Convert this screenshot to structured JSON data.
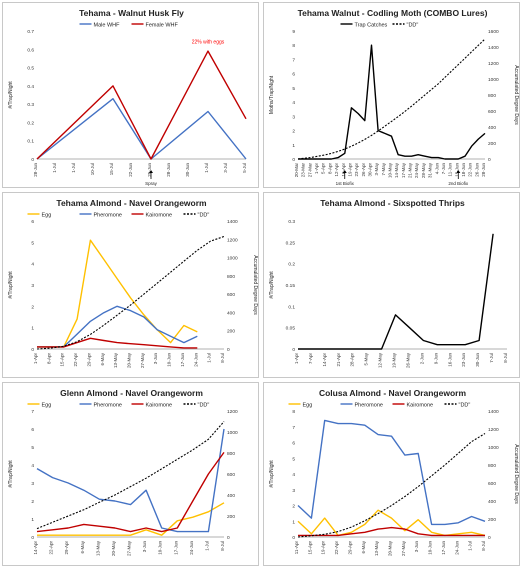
{
  "chart_data": [
    {
      "type": "line",
      "title": "Tehama - Walnut Husk Fly",
      "ylabel": "#/Trap/Night",
      "y2label": "",
      "ylim": [
        0,
        0.7
      ],
      "yticks": [
        0,
        0.1,
        0.2,
        0.3,
        0.4,
        0.5,
        0.6,
        0.7
      ],
      "categories": [
        "28-Jun",
        "1-Jul",
        "1-Jul",
        "10-Jul",
        "15-Jul",
        "22-Jun",
        "25-Jun",
        "28-Jun",
        "30-Jun",
        "1-Jul",
        "3-Jul",
        "5-Jul"
      ],
      "series": [
        {
          "name": "Male WHF",
          "color": "#4472c4",
          "values": [
            0,
            null,
            null,
            null,
            0.33,
            null,
            0,
            null,
            null,
            0.26,
            null,
            0
          ]
        },
        {
          "name": "Female WHF",
          "color": "#c00000",
          "values": [
            0,
            null,
            null,
            null,
            0.4,
            null,
            0,
            null,
            null,
            0.59,
            null,
            0.22
          ]
        }
      ],
      "annotations": [
        {
          "text": "22% with eggs",
          "color": "#ff0000",
          "category_index": 9,
          "y": 0.62
        },
        {
          "text": "Spray",
          "category_index": 6,
          "y": 0
        }
      ],
      "legend": "top"
    },
    {
      "type": "line",
      "title": "Tehama Walnut - Codling Moth (COMBO Lures)",
      "ylabel": "Moths/Trap/Night",
      "y2label": "Accumulated Degree Days",
      "ylim": [
        0,
        9
      ],
      "yticks": [
        0,
        1,
        2,
        3,
        4,
        5,
        6,
        7,
        8,
        9
      ],
      "y2lim": [
        0,
        1600
      ],
      "y2ticks": [
        0,
        200,
        400,
        600,
        800,
        1000,
        1200,
        1400,
        1600
      ],
      "categories": [
        "20-Mar",
        "23-Mar",
        "27-Mar",
        "1-Apr",
        "5-Apr",
        "8-Apr",
        "12-Apr",
        "16-Apr",
        "19-Apr",
        "23-Apr",
        "26-Apr",
        "30-Apr",
        "3-May",
        "7-May",
        "10-May",
        "14-May",
        "17-May",
        "21-May",
        "24-May",
        "28-May",
        "31-May",
        "4-Jun",
        "7-Jun",
        "11-Jun",
        "15-Jun",
        "18-Jun",
        "22-Jun",
        "26-Jun",
        "28-Jun"
      ],
      "series": [
        {
          "name": "Trap Catches",
          "color": "#000000",
          "axis": "left",
          "values": [
            0,
            0,
            0,
            0,
            0,
            0,
            0.1,
            0.4,
            3.6,
            3.2,
            2.7,
            8,
            2,
            1.8,
            1.6,
            0.3,
            0.2,
            0.2,
            0.3,
            0.2,
            0.1,
            0.1,
            0,
            0,
            0,
            0.2,
            0.9,
            1.4,
            1.8
          ]
        },
        {
          "name": "\"DD\"",
          "color": "#000000",
          "dashed": true,
          "axis": "right",
          "values": [
            0,
            10,
            20,
            35,
            50,
            70,
            95,
            125,
            160,
            200,
            245,
            295,
            350,
            410,
            470,
            530,
            595,
            660,
            730,
            800,
            870,
            940,
            1020,
            1100,
            1180,
            1260,
            1340,
            1420,
            1500
          ]
        }
      ],
      "annotations": [
        {
          "text": "1st Biofix",
          "category_index": 7,
          "y": 0
        },
        {
          "text": "2nd Biofix",
          "category_index": 24,
          "y": 0
        }
      ],
      "legend": "top"
    },
    {
      "type": "line",
      "title": "Tehama Almond - Navel Orangeworm",
      "ylabel": "#/Trap/Night",
      "y2label": "Accumulated Degree Days",
      "ylim": [
        0,
        6
      ],
      "yticks": [
        0,
        1,
        2,
        3,
        4,
        5,
        6
      ],
      "y2lim": [
        0,
        1400
      ],
      "y2ticks": [
        0,
        200,
        400,
        600,
        800,
        1000,
        1200,
        1400
      ],
      "categories": [
        "1-Apr",
        "8-Apr",
        "15-Apr",
        "22-Apr",
        "29-Apr",
        "6-May",
        "13-May",
        "20-May",
        "27-May",
        "3-Jun",
        "10-Jun",
        "17-Jun",
        "24-Jun",
        "1-Jul",
        "8-Jul"
      ],
      "series": [
        {
          "name": "Egg",
          "color": "#ffc000",
          "axis": "left",
          "values": [
            0.1,
            0.1,
            0.1,
            1.4,
            5.1,
            4.2,
            3.3,
            2.4,
            1.6,
            0.9,
            0.3,
            1.1,
            0.8,
            null,
            null
          ]
        },
        {
          "name": "Pheromone",
          "color": "#4472c4",
          "axis": "left",
          "values": [
            0.1,
            0.1,
            0.1,
            0.7,
            1.3,
            1.7,
            2.0,
            1.8,
            1.5,
            0.9,
            0.6,
            0.3,
            0.6,
            null,
            null
          ]
        },
        {
          "name": "Kairomone",
          "color": "#c00000",
          "axis": "left",
          "values": [
            0.1,
            0.1,
            0.1,
            0.3,
            0.5,
            0.4,
            0.3,
            0.25,
            0.2,
            0.15,
            0.1,
            0.05,
            0.05,
            null,
            null
          ]
        },
        {
          "name": "\"DD\"",
          "color": "#000000",
          "dashed": true,
          "axis": "right",
          "values": [
            0,
            10,
            30,
            80,
            160,
            260,
            370,
            480,
            600,
            720,
            840,
            960,
            1080,
            1180,
            1230
          ]
        }
      ],
      "legend": "top"
    },
    {
      "type": "line",
      "title": "Tehama Almond - Sixspotted Thrips",
      "ylabel": "#/Trap/Night",
      "y2label": "",
      "ylim": [
        0,
        0.3
      ],
      "yticks": [
        0,
        0.05,
        0.1,
        0.15,
        0.2,
        0.25,
        0.3
      ],
      "categories": [
        "1-Apr",
        "7-Apr",
        "14-Apr",
        "21-Apr",
        "28-Apr",
        "5-May",
        "12-May",
        "19-May",
        "26-May",
        "2-Jun",
        "9-Jun",
        "16-Jun",
        "23-Jun",
        "30-Jun",
        "7-Jul",
        "8-Jul"
      ],
      "series": [
        {
          "name": "Thrips",
          "color": "#000000",
          "values": [
            0,
            0,
            0,
            0,
            0,
            0,
            0,
            0.08,
            0.05,
            0.02,
            0.01,
            0.01,
            0.01,
            0.02,
            0.27,
            null
          ]
        }
      ],
      "legend": "none"
    },
    {
      "type": "line",
      "title": "Glenn Almond - Navel Orangeworm",
      "ylabel": "#/Trap/Night",
      "y2label": "",
      "ylim": [
        0,
        7
      ],
      "yticks": [
        0,
        1,
        2,
        3,
        4,
        5,
        6,
        7
      ],
      "y2lim": [
        0,
        1200
      ],
      "y2ticks": [
        0,
        200,
        400,
        600,
        800,
        1000,
        1200
      ],
      "categories": [
        "14-Apr",
        "22-Apr",
        "29-Apr",
        "6-May",
        "13-May",
        "20-May",
        "27-May",
        "3-Jun",
        "10-Jun",
        "17-Jun",
        "24-Jun",
        "1-Jul",
        "8-Jul"
      ],
      "series": [
        {
          "name": "Egg",
          "color": "#ffc000",
          "axis": "left",
          "values": [
            0.1,
            0.1,
            0.1,
            0.1,
            0.1,
            0.1,
            0.1,
            0.4,
            0.1,
            0.9,
            1.1,
            1.4,
            1.9
          ]
        },
        {
          "name": "Pheromone",
          "color": "#4472c4",
          "axis": "left",
          "values": [
            3.8,
            3.3,
            3.0,
            2.6,
            2.1,
            2.0,
            1.8,
            2.6,
            0.5,
            0.3,
            0.3,
            0.3,
            6.0
          ]
        },
        {
          "name": "Kairomone",
          "color": "#c00000",
          "axis": "left",
          "values": [
            0.3,
            0.4,
            0.5,
            0.7,
            0.6,
            0.5,
            0.3,
            0.5,
            0.3,
            0.5,
            2.0,
            3.5,
            4.7
          ]
        },
        {
          "name": "\"DD\"",
          "color": "#000000",
          "dashed": true,
          "axis": "right",
          "values": [
            80,
            140,
            200,
            260,
            330,
            400,
            480,
            560,
            650,
            740,
            830,
            930,
            1100
          ]
        }
      ],
      "legend": "top"
    },
    {
      "type": "line",
      "title": "Colusa Almond - Navel Orangeworm",
      "ylabel": "#/Trap/Night",
      "y2label": "Accumulated Degree Days",
      "ylim": [
        0,
        8
      ],
      "yticks": [
        0,
        1,
        2,
        3,
        4,
        5,
        6,
        7,
        8
      ],
      "y2lim": [
        0,
        1400
      ],
      "y2ticks": [
        0,
        200,
        400,
        600,
        800,
        1000,
        1200,
        1400
      ],
      "categories": [
        "11-Apr",
        "15-Apr",
        "19-Apr",
        "22-Apr",
        "29-Apr",
        "6-May",
        "13-May",
        "20-May",
        "27-May",
        "3-Jun",
        "10-Jun",
        "17-Jun",
        "24-Jun",
        "1-Jul",
        "8-Jul"
      ],
      "series": [
        {
          "name": "Egg",
          "color": "#ffc000",
          "axis": "left",
          "values": [
            1.0,
            0.2,
            1.2,
            0.1,
            0.3,
            0.8,
            1.7,
            1.2,
            0.4,
            1.1,
            0.3,
            0.1,
            0.2,
            0.3,
            0.1
          ]
        },
        {
          "name": "Pheromone",
          "color": "#4472c4",
          "axis": "left",
          "values": [
            2.0,
            1.2,
            7.4,
            7.2,
            7.2,
            7.1,
            6.5,
            6.4,
            5.2,
            5.3,
            0.8,
            0.8,
            0.9,
            1.3,
            1.0
          ]
        },
        {
          "name": "Kairomone",
          "color": "#c00000",
          "axis": "left",
          "values": [
            0.1,
            0.1,
            0.1,
            0.1,
            0.2,
            0.3,
            0.5,
            0.6,
            0.5,
            0.2,
            0.1,
            0.1,
            0.1,
            0.1,
            0.1
          ]
        },
        {
          "name": "\"DD\"",
          "color": "#000000",
          "dashed": true,
          "axis": "right",
          "values": [
            0,
            15,
            30,
            60,
            110,
            180,
            260,
            350,
            450,
            560,
            680,
            800,
            930,
            1060,
            1150
          ]
        }
      ],
      "legend": "top"
    }
  ]
}
